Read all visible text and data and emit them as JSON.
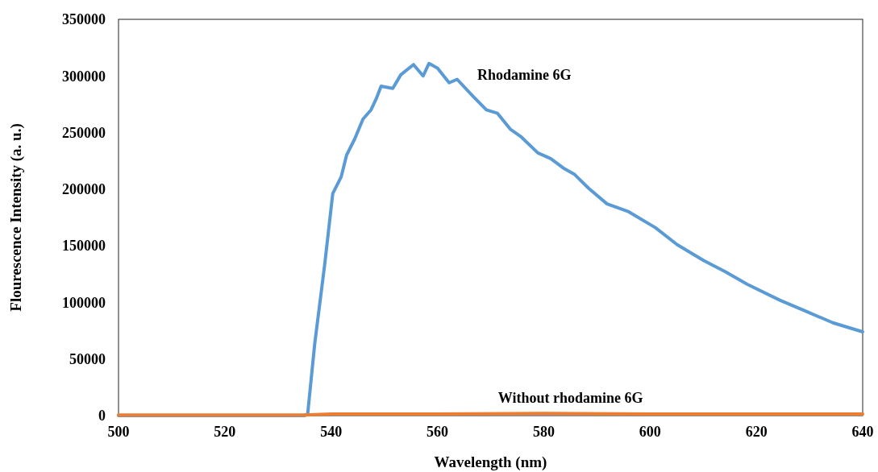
{
  "chart_data": {
    "type": "line",
    "xlabel": "Wavelength (nm)",
    "ylabel": "Flourescence Intensity (a. u.)",
    "xlim": [
      500,
      640
    ],
    "xticks": [
      500,
      520,
      540,
      560,
      580,
      600,
      620,
      640
    ],
    "ylim": [
      0,
      350000
    ],
    "yticks": [
      0,
      50000,
      100000,
      150000,
      200000,
      250000,
      300000,
      350000
    ],
    "grid": false,
    "marker": "none",
    "line_style": "solid",
    "series": [
      {
        "name": "Rhodamine 6G",
        "color": "#5b9bd5",
        "x": [
          500,
          510,
          520,
          530,
          535,
          535.6,
          536.9,
          538.8,
          540.3,
          541.9,
          542.9,
          544.4,
          546,
          547.5,
          548.5,
          549.4,
          551.6,
          553.1,
          555.5,
          557.3,
          558.4,
          560,
          562.2,
          563.7,
          566.7,
          569.2,
          571.3,
          573.7,
          575.8,
          578.9,
          581.3,
          583.9,
          585.8,
          588.4,
          591.9,
          596,
          601,
          605.1,
          610.1,
          614.2,
          618.3,
          624.4,
          629.4,
          634.4,
          640
        ],
        "values": [
          0,
          0,
          0,
          0,
          0,
          2000,
          63000,
          134000,
          196000,
          211000,
          230000,
          244000,
          262000,
          270000,
          280000,
          291000,
          289000,
          301000,
          310000,
          300000,
          311000,
          307000,
          294000,
          297000,
          282000,
          270000,
          267000,
          253000,
          246000,
          232000,
          227000,
          218000,
          213000,
          201000,
          187000,
          180000,
          166000,
          151000,
          137000,
          127000,
          116000,
          102000,
          92000,
          82000,
          74000
        ]
      },
      {
        "name": "Without rhodamine 6G",
        "color": "#ed7d31",
        "x": [
          500,
          520,
          535,
          540,
          560,
          580,
          600,
          620,
          640
        ],
        "values": [
          500,
          500,
          500,
          1500,
          1500,
          2000,
          1500,
          1500,
          1500
        ]
      }
    ]
  }
}
